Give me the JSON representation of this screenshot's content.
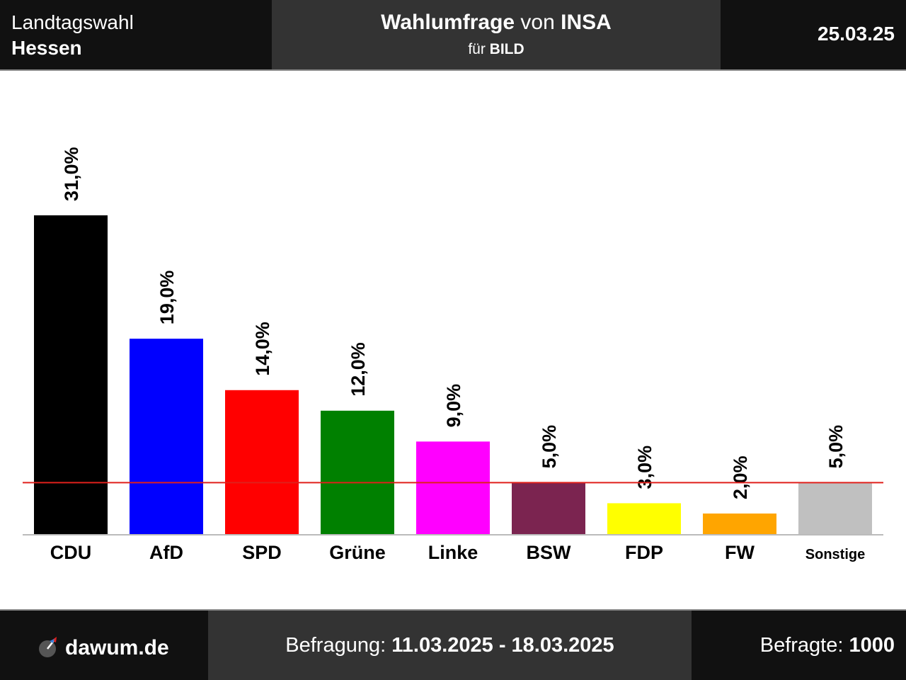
{
  "header": {
    "election_type": "Landtagswahl",
    "region": "Hessen",
    "title_word1": "Wahlumfrage",
    "title_word2": "von",
    "title_word3": "INSA",
    "client_prefix": "für",
    "client": "BILD",
    "date": "25.03.25"
  },
  "chart_data": {
    "type": "bar",
    "categories": [
      "CDU",
      "AfD",
      "SPD",
      "Grüne",
      "Linke",
      "BSW",
      "FDP",
      "FW",
      "Sonstige"
    ],
    "values": [
      31.0,
      19.0,
      14.0,
      12.0,
      9.0,
      5.0,
      3.0,
      2.0,
      5.0
    ],
    "value_labels": [
      "31,0%",
      "19,0%",
      "14,0%",
      "12,0%",
      "9,0%",
      "5,0%",
      "3,0%",
      "2,0%",
      "5,0%"
    ],
    "colors": [
      "#000000",
      "#0000ff",
      "#ff0000",
      "#008000",
      "#ff00ff",
      "#7b2450",
      "#ffff00",
      "#ffa500",
      "#c0c0c0"
    ],
    "threshold": 5.0,
    "threshold_color": "#e0201c",
    "ylim": [
      0,
      31.0
    ]
  },
  "footer": {
    "brand": "dawum.de",
    "fieldwork_label": "Befragung:",
    "fieldwork_dates": "11.03.2025 - 18.03.2025",
    "respondents_label": "Befragte:",
    "respondents": "1000"
  }
}
